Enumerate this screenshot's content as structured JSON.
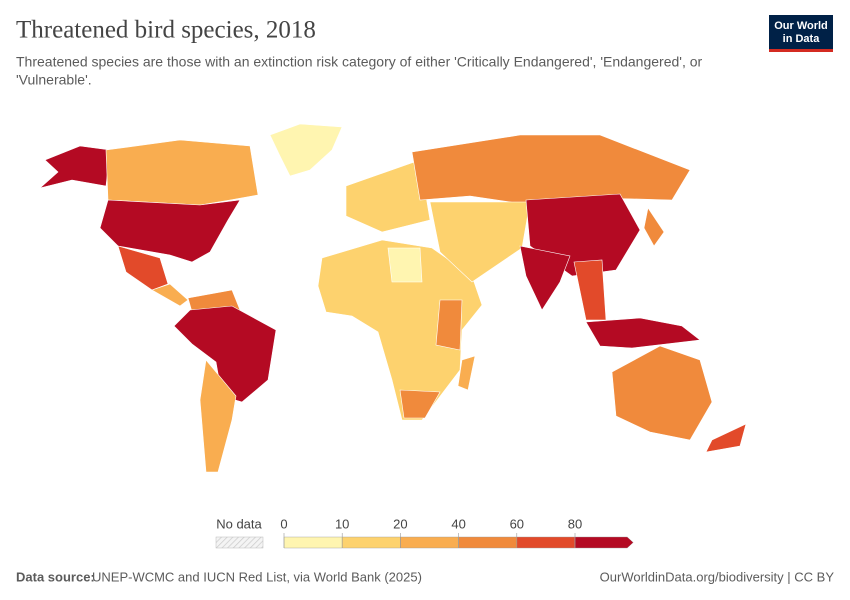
{
  "header": {
    "title": "Threatened bird species, 2018",
    "subtitle": [
      "Threatened species are those with an extinction risk category of either 'Critically Endangered', 'Endangered', or",
      "'Vulnerable'."
    ],
    "logo": [
      "Our World",
      "in Data"
    ]
  },
  "legend": {
    "no_data": "No data",
    "ticks": [
      0,
      10,
      20,
      40,
      60,
      80
    ],
    "colors": [
      "#fff5b0",
      "#fdd26e",
      "#f9ad50",
      "#f08a3c",
      "#e24a2a",
      "#b40a23"
    ]
  },
  "footer": {
    "source_label": "Data source:",
    "source": "UNEP-WCMC and IUCN Red List, via World Bank (2025)",
    "url": "OurWorldinData.org/biodiversity | CC BY"
  }
}
